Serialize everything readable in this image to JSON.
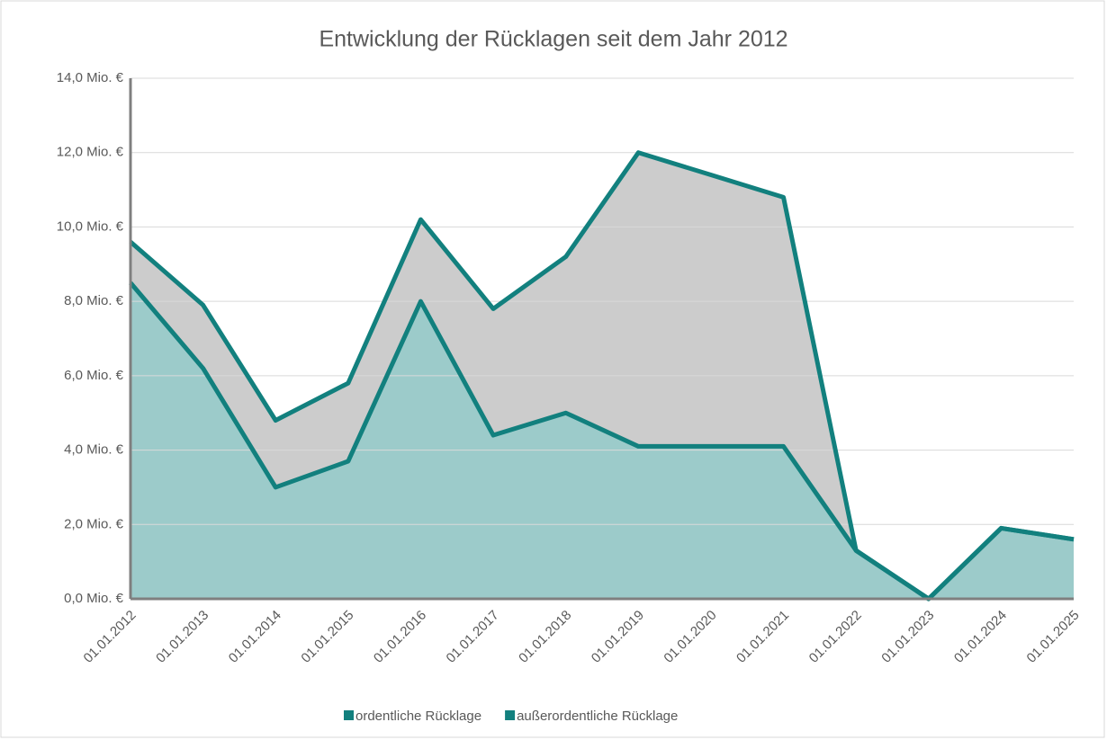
{
  "chart_data": {
    "type": "stacked_area",
    "title": "Entwicklung der Rücklagen seit dem Jahr 2012",
    "categories": [
      "01.01.2012",
      "01.01.2013",
      "01.01.2014",
      "01.01.2015",
      "01.01.2016",
      "01.01.2017",
      "01.01.2018",
      "01.01.2019",
      "01.01.2020",
      "01.01.2021",
      "01.01.2022",
      "01.01.2023",
      "01.01.2024",
      "01.01.2025"
    ],
    "series": [
      {
        "name": "ordentliche Rücklage",
        "color": "#12807e",
        "fill": "#9ccbca",
        "values": [
          8.5,
          6.2,
          3.0,
          3.7,
          8.0,
          4.4,
          5.0,
          4.1,
          4.1,
          4.1,
          1.3,
          0,
          1.9,
          1.6
        ]
      },
      {
        "name": "außerordentliche Rücklage",
        "color": "#12807e",
        "fill": "#cccccc",
        "values": [
          1.1,
          1.7,
          1.8,
          2.1,
          2.2,
          3.4,
          4.2,
          7.9,
          7.3,
          6.7,
          0,
          0,
          0,
          0
        ]
      }
    ],
    "ylim": [
      0,
      14
    ],
    "yticks": [
      {
        "value": 0,
        "label": "0,0 Mio. €"
      },
      {
        "value": 2,
        "label": "2,0 Mio. €"
      },
      {
        "value": 4,
        "label": "4,0 Mio. €"
      },
      {
        "value": 6,
        "label": "6,0 Mio. €"
      },
      {
        "value": 8,
        "label": "8,0 Mio. €"
      },
      {
        "value": 10,
        "label": "10,0 Mio. €"
      },
      {
        "value": 12,
        "label": "12,0 Mio. €"
      },
      {
        "value": 14,
        "label": "14,0 Mio. €"
      }
    ],
    "grid": true,
    "legend": "bottom"
  }
}
